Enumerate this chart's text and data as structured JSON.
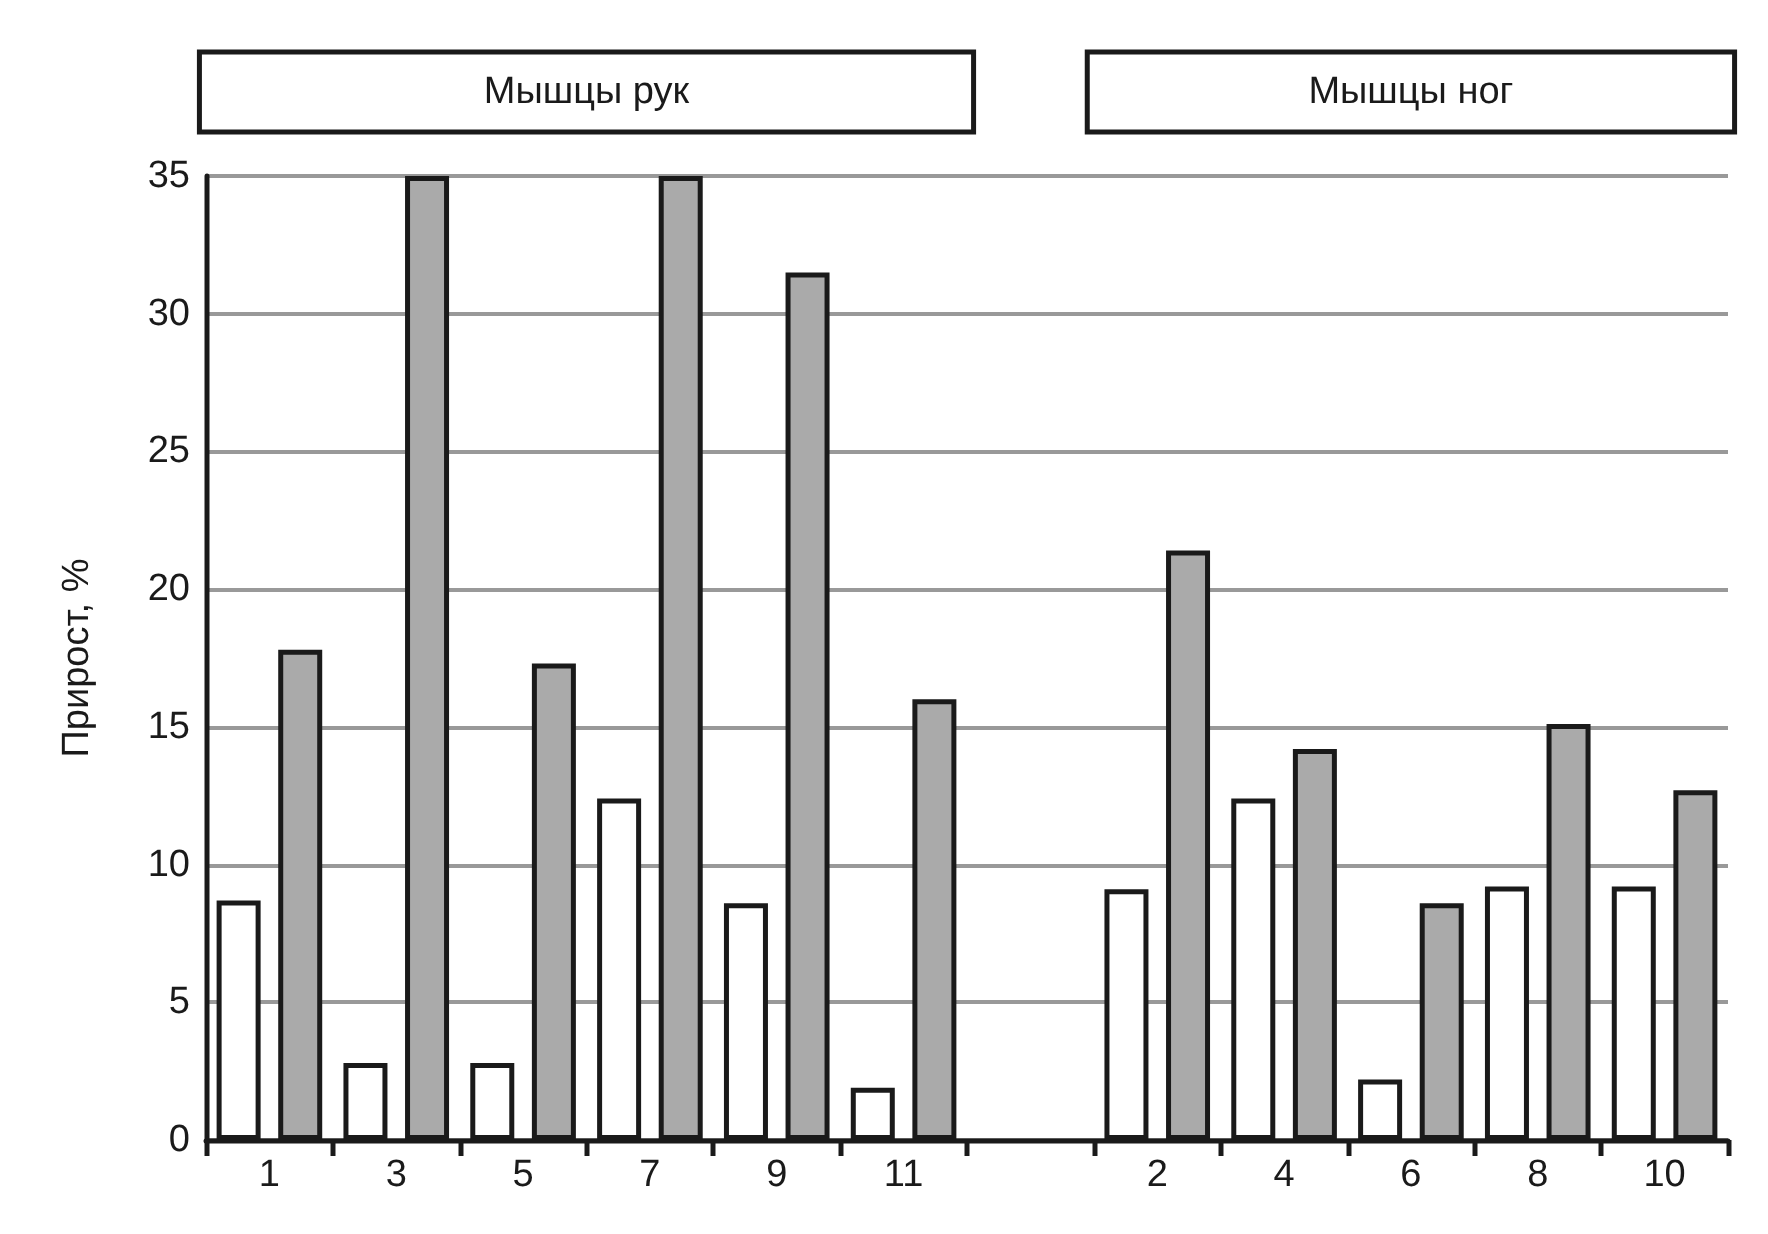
{
  "chart_data": {
    "type": "bar",
    "ylabel": "Прирост, %",
    "annotations": [
      "Мышцы рук",
      "Мышцы ног"
    ],
    "categories": [
      "1",
      "3",
      "5",
      "7",
      "9",
      "11",
      null,
      "2",
      "4",
      "6",
      "8",
      "10"
    ],
    "series": [
      {
        "color": "#ffffff",
        "values": [
          8.7,
          2.8,
          2.8,
          12.4,
          8.6,
          1.9,
          null,
          9.1,
          12.4,
          2.2,
          9.2,
          9.2
        ]
      },
      {
        "color": "#aaaaaa",
        "values": [
          17.8,
          35,
          17.3,
          35,
          31.5,
          16.0,
          null,
          21.4,
          14.2,
          8.6,
          15.1,
          12.7
        ]
      }
    ],
    "ylim": [
      0,
      35
    ],
    "yticks": [
      0,
      5,
      10,
      15,
      20,
      25,
      30,
      35
    ],
    "grid": "y"
  }
}
